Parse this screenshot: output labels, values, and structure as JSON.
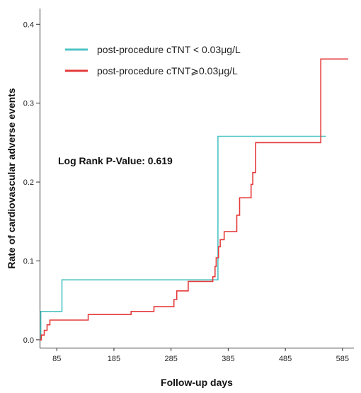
{
  "chart_data": {
    "type": "line",
    "step": true,
    "xlabel": "Follow-up days",
    "ylabel": "Rate of cardiovascular adverse events",
    "xlim": [
      55,
      605
    ],
    "ylim": [
      -0.01,
      0.42
    ],
    "xticks": [
      85,
      185,
      285,
      385,
      485,
      585
    ],
    "yticks": [
      0.0,
      0.1,
      0.2,
      0.3,
      0.4
    ],
    "ytick_labels": [
      "0.0",
      "0.1",
      "0.2",
      "0.3",
      "0.4"
    ],
    "annotation": "Log Rank P-Value: 0.619",
    "legend_position": "top-left",
    "series": [
      {
        "name": "post-procedure cTNT < 0.03μg/L",
        "color": "#4FC4C4",
        "points": [
          [
            55,
            0.0
          ],
          [
            57,
            0.0
          ],
          [
            57,
            0.036
          ],
          [
            94,
            0.036
          ],
          [
            94,
            0.076
          ],
          [
            367,
            0.076
          ],
          [
            367,
            0.258
          ],
          [
            556,
            0.258
          ]
        ]
      },
      {
        "name": "post-procedure cTNT⩾0.03μg/L",
        "color": "#E43B3B",
        "points": [
          [
            55,
            0.0
          ],
          [
            58,
            0.0
          ],
          [
            58,
            0.006
          ],
          [
            63,
            0.006
          ],
          [
            63,
            0.012
          ],
          [
            68,
            0.012
          ],
          [
            68,
            0.019
          ],
          [
            73,
            0.019
          ],
          [
            73,
            0.025
          ],
          [
            140,
            0.025
          ],
          [
            140,
            0.032
          ],
          [
            215,
            0.032
          ],
          [
            215,
            0.036
          ],
          [
            255,
            0.036
          ],
          [
            255,
            0.042
          ],
          [
            290,
            0.042
          ],
          [
            290,
            0.051
          ],
          [
            295,
            0.051
          ],
          [
            295,
            0.062
          ],
          [
            315,
            0.062
          ],
          [
            315,
            0.074
          ],
          [
            358,
            0.074
          ],
          [
            358,
            0.08
          ],
          [
            362,
            0.08
          ],
          [
            362,
            0.093
          ],
          [
            364,
            0.093
          ],
          [
            364,
            0.104
          ],
          [
            368,
            0.104
          ],
          [
            368,
            0.118
          ],
          [
            371,
            0.118
          ],
          [
            371,
            0.127
          ],
          [
            378,
            0.127
          ],
          [
            378,
            0.137
          ],
          [
            400,
            0.137
          ],
          [
            400,
            0.158
          ],
          [
            405,
            0.158
          ],
          [
            405,
            0.18
          ],
          [
            425,
            0.18
          ],
          [
            425,
            0.197
          ],
          [
            428,
            0.197
          ],
          [
            428,
            0.212
          ],
          [
            433,
            0.212
          ],
          [
            433,
            0.25
          ],
          [
            547,
            0.25
          ],
          [
            547,
            0.356
          ],
          [
            595,
            0.356
          ]
        ]
      }
    ]
  }
}
